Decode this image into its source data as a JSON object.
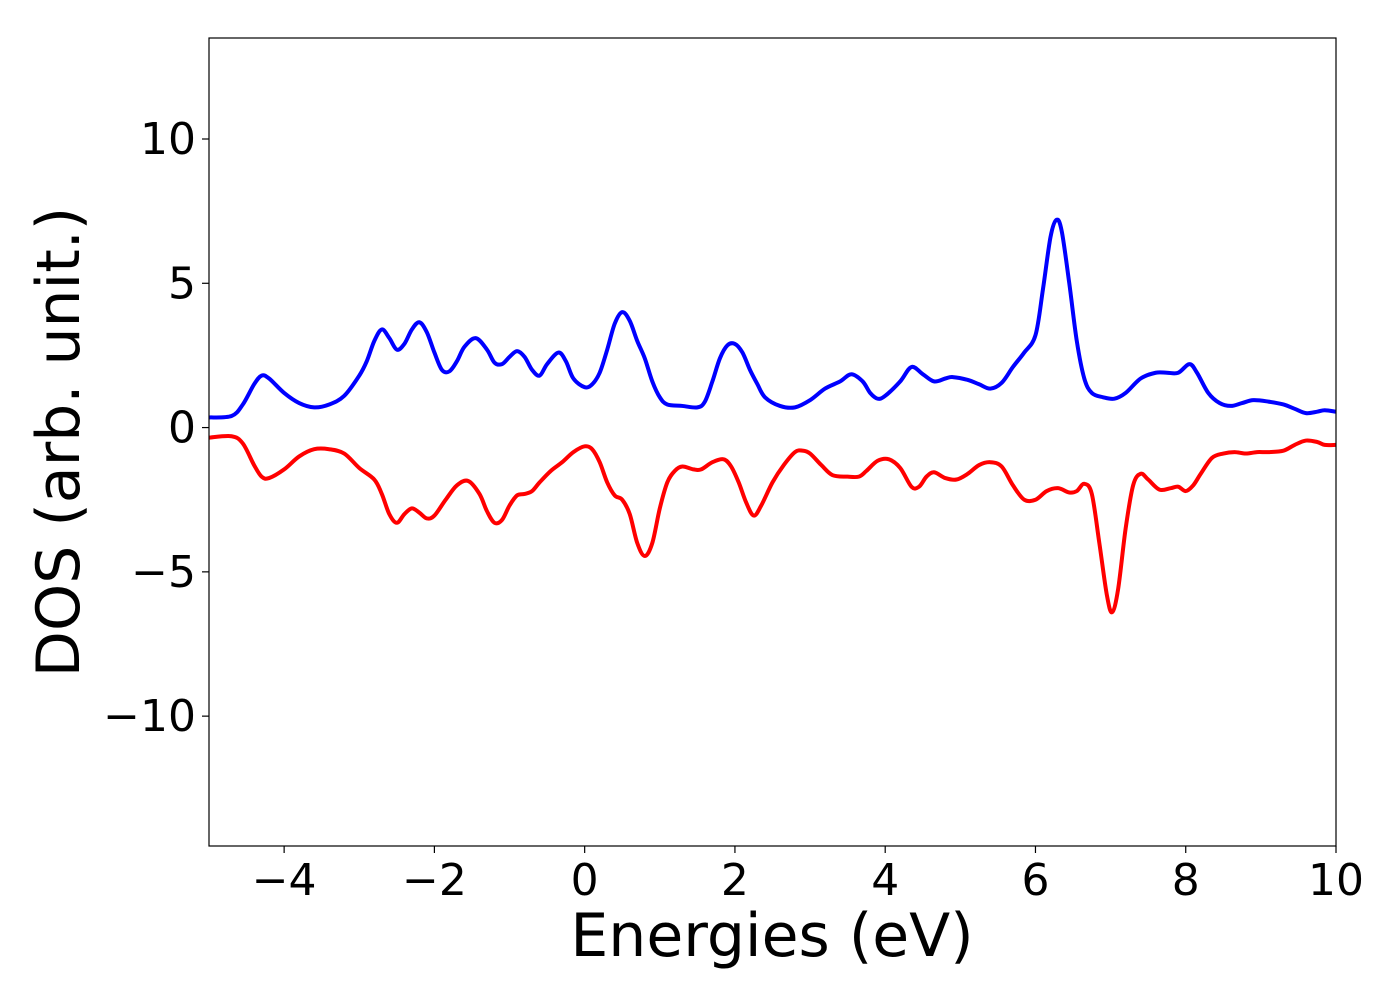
{
  "chart_data": {
    "type": "line",
    "title": "",
    "xlabel": "Energies (eV)",
    "ylabel": "DOS (arb. unit.)",
    "xlim": [
      -5,
      10
    ],
    "ylim": [
      -14.5,
      13.5
    ],
    "xticks": [
      -4,
      -2,
      0,
      2,
      4,
      6,
      8,
      10
    ],
    "xtick_labels": [
      "−4",
      "−2",
      "0",
      "2",
      "4",
      "6",
      "8",
      "10"
    ],
    "yticks": [
      10,
      5,
      0,
      -5,
      -10
    ],
    "ytick_labels": [
      "10",
      "5",
      "0",
      "−5",
      "−10"
    ],
    "grid": false,
    "legend": "none",
    "series": [
      {
        "color": "#0000ff",
        "points": [
          [
            -5.0,
            0.35
          ],
          [
            -4.7,
            0.4
          ],
          [
            -4.55,
            0.8
          ],
          [
            -4.4,
            1.5
          ],
          [
            -4.3,
            1.8
          ],
          [
            -4.2,
            1.7
          ],
          [
            -4.0,
            1.2
          ],
          [
            -3.8,
            0.85
          ],
          [
            -3.6,
            0.7
          ],
          [
            -3.4,
            0.8
          ],
          [
            -3.2,
            1.1
          ],
          [
            -3.0,
            1.8
          ],
          [
            -2.9,
            2.3
          ],
          [
            -2.8,
            3.0
          ],
          [
            -2.7,
            3.4
          ],
          [
            -2.6,
            3.1
          ],
          [
            -2.5,
            2.7
          ],
          [
            -2.4,
            2.9
          ],
          [
            -2.3,
            3.4
          ],
          [
            -2.2,
            3.65
          ],
          [
            -2.1,
            3.3
          ],
          [
            -2.0,
            2.6
          ],
          [
            -1.9,
            2.0
          ],
          [
            -1.8,
            1.95
          ],
          [
            -1.7,
            2.3
          ],
          [
            -1.6,
            2.8
          ],
          [
            -1.45,
            3.1
          ],
          [
            -1.3,
            2.7
          ],
          [
            -1.2,
            2.25
          ],
          [
            -1.1,
            2.2
          ],
          [
            -1.0,
            2.45
          ],
          [
            -0.9,
            2.65
          ],
          [
            -0.8,
            2.45
          ],
          [
            -0.7,
            2.0
          ],
          [
            -0.6,
            1.8
          ],
          [
            -0.5,
            2.2
          ],
          [
            -0.35,
            2.6
          ],
          [
            -0.25,
            2.3
          ],
          [
            -0.15,
            1.7
          ],
          [
            0.0,
            1.4
          ],
          [
            0.1,
            1.5
          ],
          [
            0.2,
            1.9
          ],
          [
            0.3,
            2.7
          ],
          [
            0.4,
            3.6
          ],
          [
            0.5,
            4.0
          ],
          [
            0.6,
            3.7
          ],
          [
            0.7,
            3.0
          ],
          [
            0.8,
            2.4
          ],
          [
            0.9,
            1.6
          ],
          [
            1.0,
            1.05
          ],
          [
            1.1,
            0.8
          ],
          [
            1.3,
            0.75
          ],
          [
            1.5,
            0.7
          ],
          [
            1.6,
            0.9
          ],
          [
            1.7,
            1.6
          ],
          [
            1.8,
            2.4
          ],
          [
            1.9,
            2.85
          ],
          [
            2.0,
            2.9
          ],
          [
            2.1,
            2.6
          ],
          [
            2.2,
            2.0
          ],
          [
            2.3,
            1.5
          ],
          [
            2.4,
            1.05
          ],
          [
            2.6,
            0.75
          ],
          [
            2.8,
            0.7
          ],
          [
            3.0,
            0.95
          ],
          [
            3.2,
            1.35
          ],
          [
            3.4,
            1.6
          ],
          [
            3.55,
            1.85
          ],
          [
            3.7,
            1.6
          ],
          [
            3.8,
            1.2
          ],
          [
            3.9,
            1.0
          ],
          [
            4.0,
            1.1
          ],
          [
            4.2,
            1.6
          ],
          [
            4.35,
            2.1
          ],
          [
            4.5,
            1.85
          ],
          [
            4.65,
            1.6
          ],
          [
            4.8,
            1.7
          ],
          [
            4.9,
            1.75
          ],
          [
            5.1,
            1.65
          ],
          [
            5.25,
            1.5
          ],
          [
            5.4,
            1.35
          ],
          [
            5.55,
            1.55
          ],
          [
            5.7,
            2.1
          ],
          [
            5.85,
            2.6
          ],
          [
            6.0,
            3.2
          ],
          [
            6.1,
            4.8
          ],
          [
            6.2,
            6.6
          ],
          [
            6.28,
            7.2
          ],
          [
            6.35,
            6.8
          ],
          [
            6.45,
            5.0
          ],
          [
            6.55,
            3.0
          ],
          [
            6.65,
            1.7
          ],
          [
            6.75,
            1.2
          ],
          [
            6.9,
            1.05
          ],
          [
            7.05,
            1.0
          ],
          [
            7.2,
            1.2
          ],
          [
            7.4,
            1.7
          ],
          [
            7.6,
            1.9
          ],
          [
            7.75,
            1.9
          ],
          [
            7.9,
            1.9
          ],
          [
            8.05,
            2.2
          ],
          [
            8.15,
            1.9
          ],
          [
            8.3,
            1.2
          ],
          [
            8.45,
            0.85
          ],
          [
            8.6,
            0.75
          ],
          [
            8.75,
            0.85
          ],
          [
            8.9,
            0.95
          ],
          [
            9.1,
            0.9
          ],
          [
            9.3,
            0.8
          ],
          [
            9.45,
            0.65
          ],
          [
            9.6,
            0.5
          ],
          [
            9.75,
            0.55
          ],
          [
            9.85,
            0.6
          ],
          [
            10.0,
            0.55
          ]
        ]
      },
      {
        "color": "#ff0000",
        "points": [
          [
            -5.0,
            -0.35
          ],
          [
            -4.7,
            -0.3
          ],
          [
            -4.55,
            -0.55
          ],
          [
            -4.4,
            -1.3
          ],
          [
            -4.3,
            -1.7
          ],
          [
            -4.2,
            -1.75
          ],
          [
            -4.0,
            -1.45
          ],
          [
            -3.8,
            -1.0
          ],
          [
            -3.6,
            -0.75
          ],
          [
            -3.4,
            -0.75
          ],
          [
            -3.2,
            -0.9
          ],
          [
            -3.0,
            -1.4
          ],
          [
            -2.8,
            -1.8
          ],
          [
            -2.7,
            -2.3
          ],
          [
            -2.6,
            -3.0
          ],
          [
            -2.5,
            -3.3
          ],
          [
            -2.4,
            -3.0
          ],
          [
            -2.3,
            -2.8
          ],
          [
            -2.2,
            -2.95
          ],
          [
            -2.1,
            -3.15
          ],
          [
            -2.0,
            -3.05
          ],
          [
            -1.85,
            -2.5
          ],
          [
            -1.7,
            -2.0
          ],
          [
            -1.55,
            -1.85
          ],
          [
            -1.4,
            -2.3
          ],
          [
            -1.3,
            -2.9
          ],
          [
            -1.2,
            -3.3
          ],
          [
            -1.1,
            -3.2
          ],
          [
            -1.0,
            -2.7
          ],
          [
            -0.9,
            -2.35
          ],
          [
            -0.8,
            -2.3
          ],
          [
            -0.7,
            -2.2
          ],
          [
            -0.6,
            -1.9
          ],
          [
            -0.45,
            -1.5
          ],
          [
            -0.3,
            -1.2
          ],
          [
            -0.15,
            -0.85
          ],
          [
            0.0,
            -0.65
          ],
          [
            0.1,
            -0.75
          ],
          [
            0.2,
            -1.2
          ],
          [
            0.3,
            -1.9
          ],
          [
            0.4,
            -2.35
          ],
          [
            0.5,
            -2.5
          ],
          [
            0.6,
            -3.0
          ],
          [
            0.7,
            -4.0
          ],
          [
            0.8,
            -4.45
          ],
          [
            0.9,
            -4.0
          ],
          [
            1.0,
            -2.8
          ],
          [
            1.1,
            -1.9
          ],
          [
            1.2,
            -1.5
          ],
          [
            1.3,
            -1.35
          ],
          [
            1.45,
            -1.45
          ],
          [
            1.55,
            -1.45
          ],
          [
            1.7,
            -1.2
          ],
          [
            1.85,
            -1.1
          ],
          [
            1.95,
            -1.35
          ],
          [
            2.05,
            -1.9
          ],
          [
            2.15,
            -2.6
          ],
          [
            2.25,
            -3.05
          ],
          [
            2.35,
            -2.7
          ],
          [
            2.5,
            -1.9
          ],
          [
            2.65,
            -1.3
          ],
          [
            2.8,
            -0.85
          ],
          [
            2.9,
            -0.8
          ],
          [
            3.0,
            -0.9
          ],
          [
            3.15,
            -1.3
          ],
          [
            3.3,
            -1.65
          ],
          [
            3.5,
            -1.7
          ],
          [
            3.65,
            -1.7
          ],
          [
            3.75,
            -1.5
          ],
          [
            3.9,
            -1.15
          ],
          [
            4.05,
            -1.1
          ],
          [
            4.2,
            -1.4
          ],
          [
            4.35,
            -2.05
          ],
          [
            4.45,
            -2.05
          ],
          [
            4.55,
            -1.7
          ],
          [
            4.65,
            -1.55
          ],
          [
            4.8,
            -1.75
          ],
          [
            4.95,
            -1.8
          ],
          [
            5.1,
            -1.6
          ],
          [
            5.25,
            -1.3
          ],
          [
            5.4,
            -1.2
          ],
          [
            5.55,
            -1.35
          ],
          [
            5.7,
            -2.0
          ],
          [
            5.85,
            -2.5
          ],
          [
            6.0,
            -2.5
          ],
          [
            6.15,
            -2.2
          ],
          [
            6.3,
            -2.1
          ],
          [
            6.45,
            -2.25
          ],
          [
            6.55,
            -2.2
          ],
          [
            6.65,
            -1.95
          ],
          [
            6.75,
            -2.3
          ],
          [
            6.85,
            -4.0
          ],
          [
            6.95,
            -5.8
          ],
          [
            7.02,
            -6.4
          ],
          [
            7.1,
            -5.6
          ],
          [
            7.2,
            -3.5
          ],
          [
            7.3,
            -2.0
          ],
          [
            7.4,
            -1.6
          ],
          [
            7.5,
            -1.8
          ],
          [
            7.65,
            -2.15
          ],
          [
            7.8,
            -2.1
          ],
          [
            7.9,
            -2.05
          ],
          [
            8.0,
            -2.2
          ],
          [
            8.1,
            -2.0
          ],
          [
            8.2,
            -1.6
          ],
          [
            8.35,
            -1.05
          ],
          [
            8.5,
            -0.9
          ],
          [
            8.65,
            -0.85
          ],
          [
            8.8,
            -0.9
          ],
          [
            8.95,
            -0.85
          ],
          [
            9.1,
            -0.85
          ],
          [
            9.3,
            -0.8
          ],
          [
            9.45,
            -0.6
          ],
          [
            9.6,
            -0.45
          ],
          [
            9.75,
            -0.5
          ],
          [
            9.85,
            -0.6
          ],
          [
            10.0,
            -0.6
          ]
        ]
      }
    ]
  }
}
